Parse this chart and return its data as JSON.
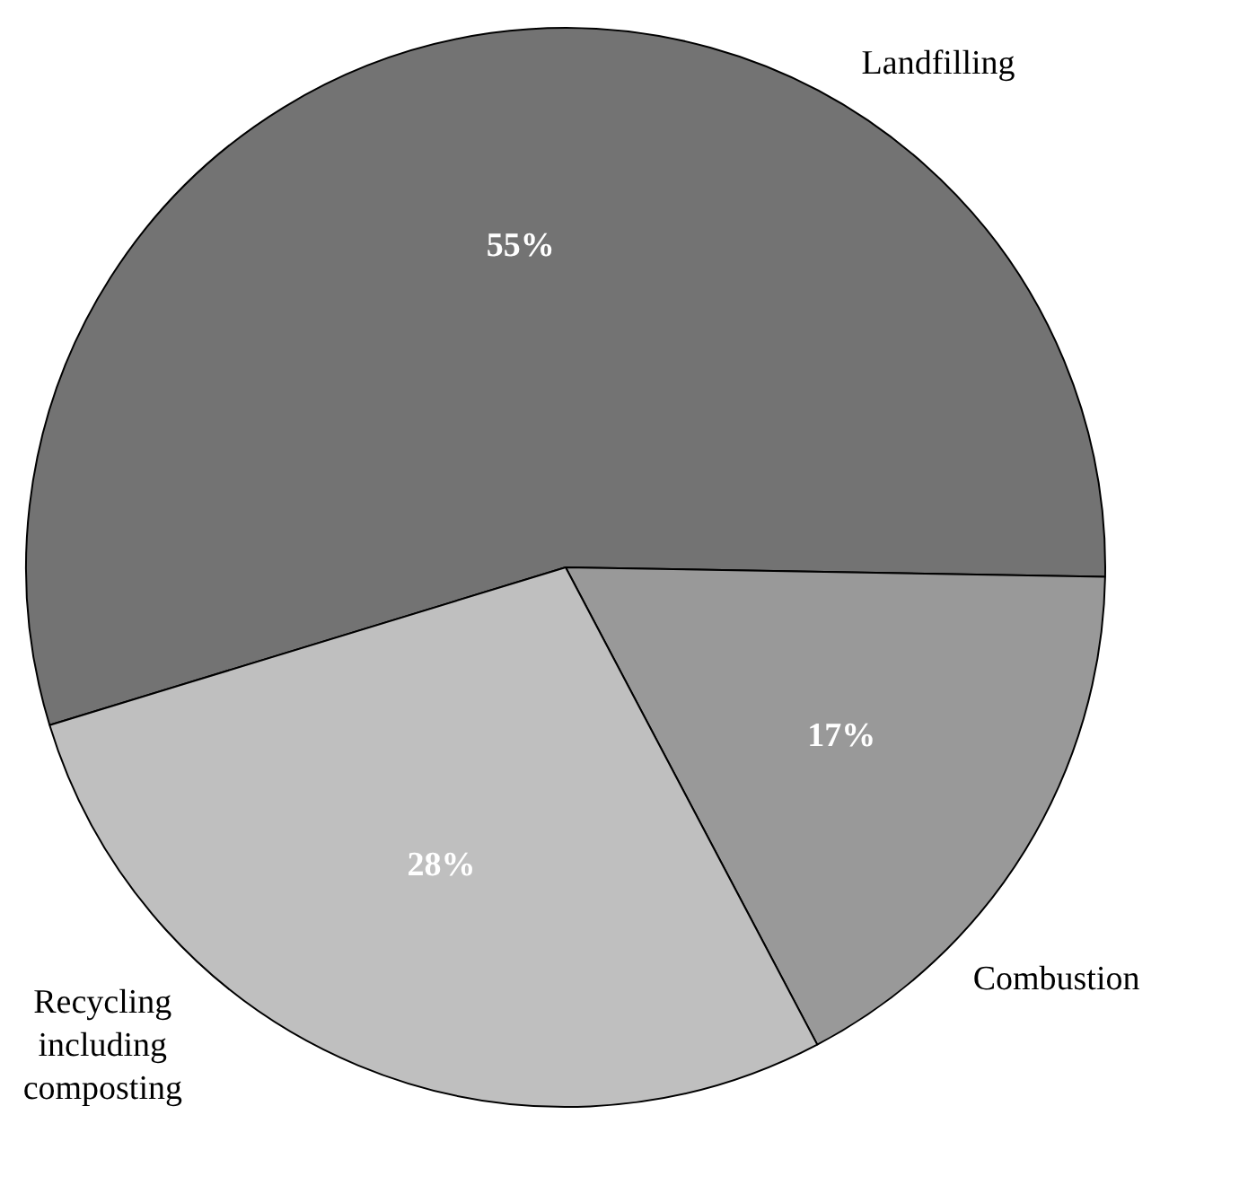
{
  "chart_data": {
    "type": "pie",
    "categories": [
      "Landfilling",
      "Combustion",
      "Recycling including composting"
    ],
    "values": [
      55,
      17,
      28
    ],
    "colors": [
      "#737373",
      "#999999",
      "#bfbfbf"
    ],
    "value_labels": [
      "55%",
      "17%",
      "28%"
    ],
    "legend": false
  }
}
